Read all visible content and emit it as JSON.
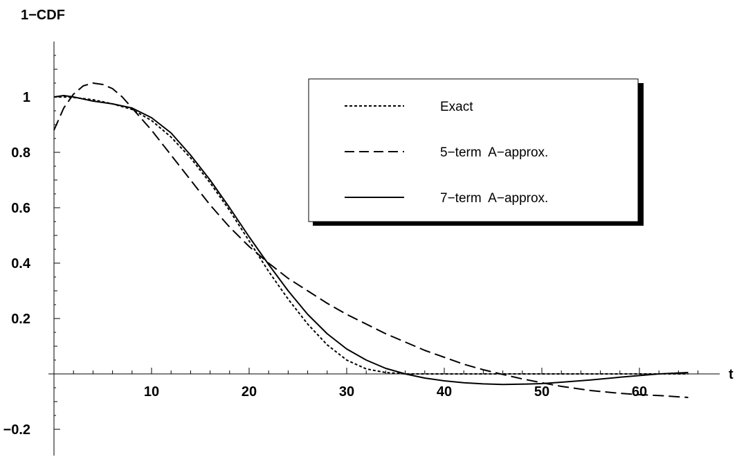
{
  "chart_data": {
    "type": "line",
    "title": "",
    "xlabel": "t",
    "ylabel": "1−CDF",
    "xlim": [
      -1,
      67
    ],
    "ylim": [
      -0.3,
      1.2
    ],
    "x_ticks": [
      10,
      20,
      30,
      40,
      50,
      60
    ],
    "x_tick_labels": [
      "10",
      "20",
      "30",
      "40",
      "50",
      "60"
    ],
    "y_ticks": [
      -0.2,
      0.2,
      0.4,
      0.6,
      0.8,
      1
    ],
    "y_tick_labels": [
      "−0.2",
      "0.2",
      "0.4",
      "0.6",
      "0.8",
      "1"
    ],
    "grid": false,
    "legend_position": "top-right",
    "series": [
      {
        "name": "Exact",
        "style": "dotted",
        "x": [
          0,
          1,
          2,
          4,
          6,
          8,
          10,
          12,
          14,
          16,
          18,
          20,
          22,
          24,
          26,
          28,
          30,
          32,
          34,
          36,
          40,
          45,
          50,
          55,
          60,
          65
        ],
        "y": [
          1.0,
          1.0,
          0.998,
          0.99,
          0.975,
          0.955,
          0.915,
          0.855,
          0.78,
          0.69,
          0.59,
          0.48,
          0.37,
          0.27,
          0.18,
          0.105,
          0.05,
          0.018,
          0.005,
          0.0,
          0.0,
          0.0,
          0.0,
          0.0,
          0.0,
          0.0
        ]
      },
      {
        "name": "5−term  A−approx.",
        "style": "dashed",
        "x": [
          0,
          1,
          2,
          3,
          4,
          5,
          6,
          7,
          8,
          10,
          12,
          14,
          16,
          18,
          20,
          22,
          24,
          26,
          28,
          30,
          32,
          34,
          36,
          38,
          40,
          42,
          44,
          46,
          48,
          50,
          52,
          55,
          58,
          60,
          62,
          65
        ],
        "y": [
          0.88,
          0.96,
          1.01,
          1.04,
          1.05,
          1.045,
          1.03,
          1.0,
          0.96,
          0.88,
          0.79,
          0.7,
          0.61,
          0.53,
          0.46,
          0.4,
          0.345,
          0.3,
          0.255,
          0.215,
          0.18,
          0.145,
          0.115,
          0.085,
          0.06,
          0.035,
          0.015,
          -0.002,
          -0.018,
          -0.032,
          -0.045,
          -0.06,
          -0.07,
          -0.075,
          -0.078,
          -0.085
        ]
      },
      {
        "name": "7−term  A−approx.",
        "style": "solid",
        "x": [
          0,
          1,
          2,
          4,
          6,
          8,
          10,
          12,
          14,
          16,
          18,
          20,
          22,
          24,
          26,
          28,
          30,
          32,
          34,
          36,
          38,
          40,
          42,
          44,
          46,
          48,
          50,
          52,
          55,
          58,
          60,
          62,
          65
        ],
        "y": [
          1.0,
          1.005,
          1.0,
          0.985,
          0.975,
          0.96,
          0.925,
          0.87,
          0.79,
          0.7,
          0.6,
          0.495,
          0.395,
          0.3,
          0.215,
          0.145,
          0.09,
          0.05,
          0.02,
          0.0,
          -0.015,
          -0.025,
          -0.032,
          -0.036,
          -0.038,
          -0.037,
          -0.035,
          -0.03,
          -0.022,
          -0.012,
          -0.006,
          0.0,
          0.005
        ]
      }
    ]
  }
}
